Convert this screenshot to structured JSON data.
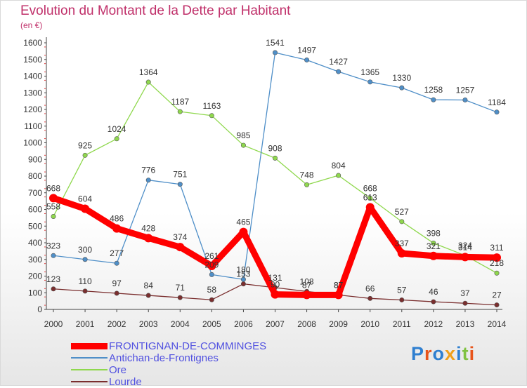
{
  "title": "Evolution du Montant de la Dette par Habitant",
  "subtitle": "(en €)",
  "logo": "Proxiti",
  "chart_data": {
    "type": "line",
    "x": [
      "2000",
      "2001",
      "2002",
      "2003",
      "2004",
      "2005",
      "2006",
      "2007",
      "2008",
      "2009",
      "2010",
      "2011",
      "2012",
      "2013",
      "2014"
    ],
    "yticks": [
      0,
      100,
      200,
      300,
      400,
      500,
      600,
      700,
      800,
      900,
      1000,
      1100,
      1200,
      1300,
      1400,
      1500,
      1600
    ],
    "ylim": [
      0,
      1600
    ],
    "grid": false,
    "legend_position": "bottom-left",
    "series": [
      {
        "name": "FRONTIGNAN-DE-COMMINGES",
        "color": "#ff0000",
        "values": [
          668,
          604,
          486,
          428,
          374,
          261,
          465,
          90,
          87,
          87,
          613,
          337,
          321,
          314,
          311
        ]
      },
      {
        "name": "Antichan-de-Frontignes",
        "color": "#4f8fc8",
        "values": [
          323,
          300,
          277,
          776,
          751,
          209,
          180,
          1541,
          1497,
          1427,
          1365,
          1330,
          1258,
          1257,
          1184
        ]
      },
      {
        "name": "Ore",
        "color": "#8fd84d",
        "values": [
          558,
          925,
          1024,
          1364,
          1187,
          1163,
          985,
          908,
          748,
          804,
          668,
          527,
          398,
          324,
          218
        ]
      },
      {
        "name": "Lourde",
        "color": "#7a2e2e",
        "values": [
          123,
          110,
          97,
          84,
          71,
          58,
          153,
          131,
          108,
          87,
          66,
          57,
          46,
          37,
          27
        ]
      }
    ]
  }
}
